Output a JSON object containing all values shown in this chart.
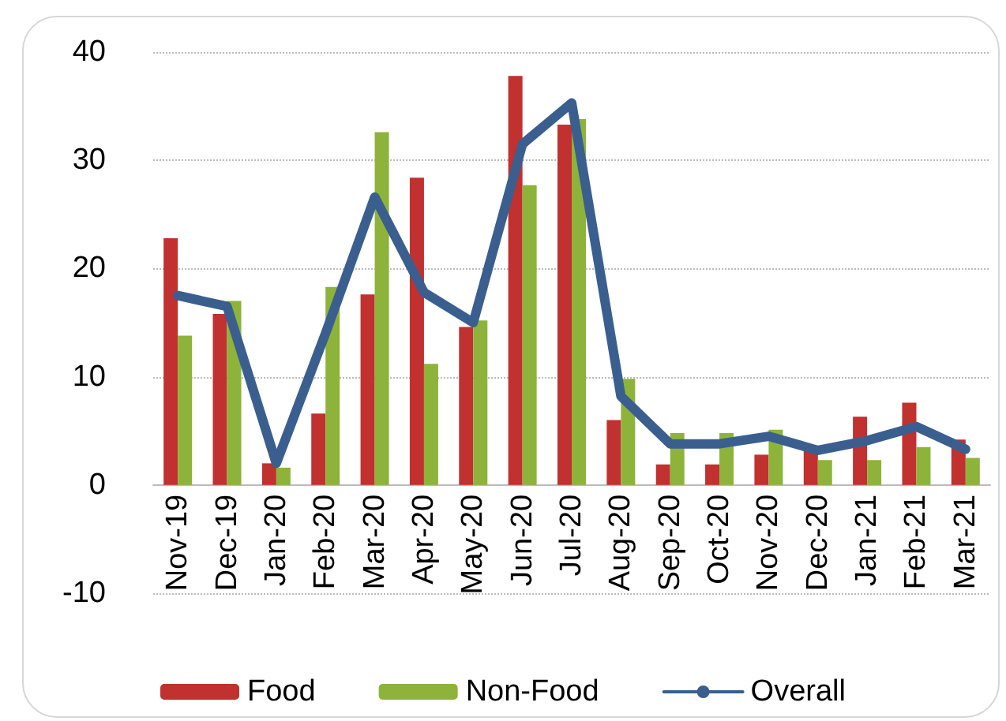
{
  "chart_data": {
    "type": "bar",
    "categories": [
      "Nov-19",
      "Dec-19",
      "Jan-20",
      "Feb-20",
      "Mar-20",
      "Apr-20",
      "May-20",
      "Jun-20",
      "Jul-20",
      "Aug-20",
      "Sep-20",
      "Oct-20",
      "Nov-20",
      "Dec-20",
      "Jan-21",
      "Feb-21",
      "Mar-21"
    ],
    "series": [
      {
        "name": "Food",
        "color": "#c0312f",
        "values": [
          22.8,
          15.8,
          2,
          6.6,
          17.6,
          28.4,
          14.6,
          37.8,
          33.3,
          6,
          1.9,
          1.9,
          2.8,
          3.5,
          6.3,
          7.6,
          4.2
        ]
      },
      {
        "name": "Non-Food",
        "color": "#8db33a",
        "values": [
          13.8,
          17,
          1.6,
          18.3,
          32.6,
          11.2,
          15.2,
          27.7,
          33.8,
          9.8,
          4.8,
          4.8,
          5.1,
          2.3,
          2.3,
          3.5,
          2.5
        ]
      },
      {
        "name": "Overall",
        "type": "line",
        "color": "#3a5f8f",
        "values": [
          17.5,
          16.5,
          2,
          14,
          26.6,
          17.8,
          15,
          31.5,
          35.3,
          8.2,
          3.8,
          3.8,
          4.5,
          3.2,
          4.1,
          5.4,
          3.3
        ]
      }
    ],
    "ylim": [
      -10,
      40
    ],
    "yticks": [
      -10,
      0,
      10,
      20,
      30,
      40
    ],
    "grid": "y",
    "legend": "bottom",
    "marker": "none",
    "line_style": "solid"
  }
}
